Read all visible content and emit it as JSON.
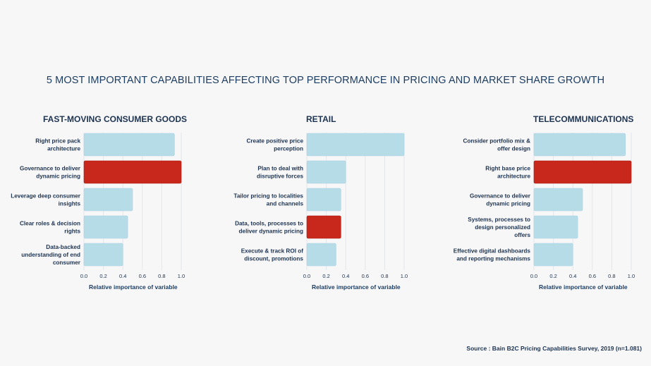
{
  "title": "5 MOST IMPORTANT CAPABILITIES AFFECTING TOP PERFORMANCE IN PRICING AND MARKET SHARE GROWTH",
  "source": "Source : Bain B2C Pricing Capabilities Survey, 2019 (n=1.081)",
  "colors": {
    "normal": "#b6dce8",
    "highlight": "#c8281c",
    "grid": "#e3e6ea"
  },
  "chart_data": [
    {
      "type": "bar",
      "orientation": "horizontal",
      "title": "FAST-MOVING CONSUMER GOODS",
      "xlabel": "Relative importance of variable",
      "xlim": [
        0,
        1.0
      ],
      "ticks": [
        "0.0",
        "0.2",
        "0.4",
        "0.6",
        "0.8",
        "1.0"
      ],
      "categories": [
        [
          "Right price pack",
          "architecture"
        ],
        [
          "Governance to deliver",
          "dynamic pricing"
        ],
        [
          "Leverage deep consumer",
          "insights"
        ],
        [
          "Clear roles & decision",
          "rights"
        ],
        [
          "Data-backed",
          "understanding of end",
          "consumer"
        ]
      ],
      "values": [
        0.93,
        1.0,
        0.5,
        0.45,
        0.4
      ],
      "highlight": [
        false,
        true,
        false,
        false,
        false
      ]
    },
    {
      "type": "bar",
      "orientation": "horizontal",
      "title": "RETAIL",
      "xlabel": "Relative importance of variable",
      "xlim": [
        0,
        1.0
      ],
      "ticks": [
        "0.0",
        "0.2",
        "0.4",
        "0.6",
        "0.8",
        "1.0"
      ],
      "categories": [
        [
          "Create positive price",
          "perception"
        ],
        [
          "Plan to deal with",
          "disruptive forces"
        ],
        [
          "Tailor pricing to localities",
          "and channels"
        ],
        [
          "Data, tools, processes to",
          "deliver dynamic pricing"
        ],
        [
          "Execute & track ROI of",
          "discount, promotions"
        ]
      ],
      "values": [
        1.0,
        0.4,
        0.35,
        0.35,
        0.3
      ],
      "highlight": [
        false,
        false,
        false,
        true,
        false
      ]
    },
    {
      "type": "bar",
      "orientation": "horizontal",
      "title": "TELECOMMUNICATIONS",
      "xlabel": "Relative importance of variable",
      "xlim": [
        0,
        1.0
      ],
      "ticks": [
        "0.0",
        "0.2",
        "0.4",
        "0.6",
        "0.8",
        "1.0"
      ],
      "categories": [
        [
          "Consider portfolio mix &",
          "offer design"
        ],
        [
          "Right base price",
          "architecture"
        ],
        [
          "Governance to deliver",
          "dynamic pricing"
        ],
        [
          "Systems, processes to",
          "design personalized",
          "offers"
        ],
        [
          "Effective digital dashboards",
          "and reporting mechanisms"
        ]
      ],
      "values": [
        0.94,
        1.0,
        0.5,
        0.45,
        0.4
      ],
      "highlight": [
        false,
        true,
        false,
        false,
        false
      ]
    }
  ]
}
